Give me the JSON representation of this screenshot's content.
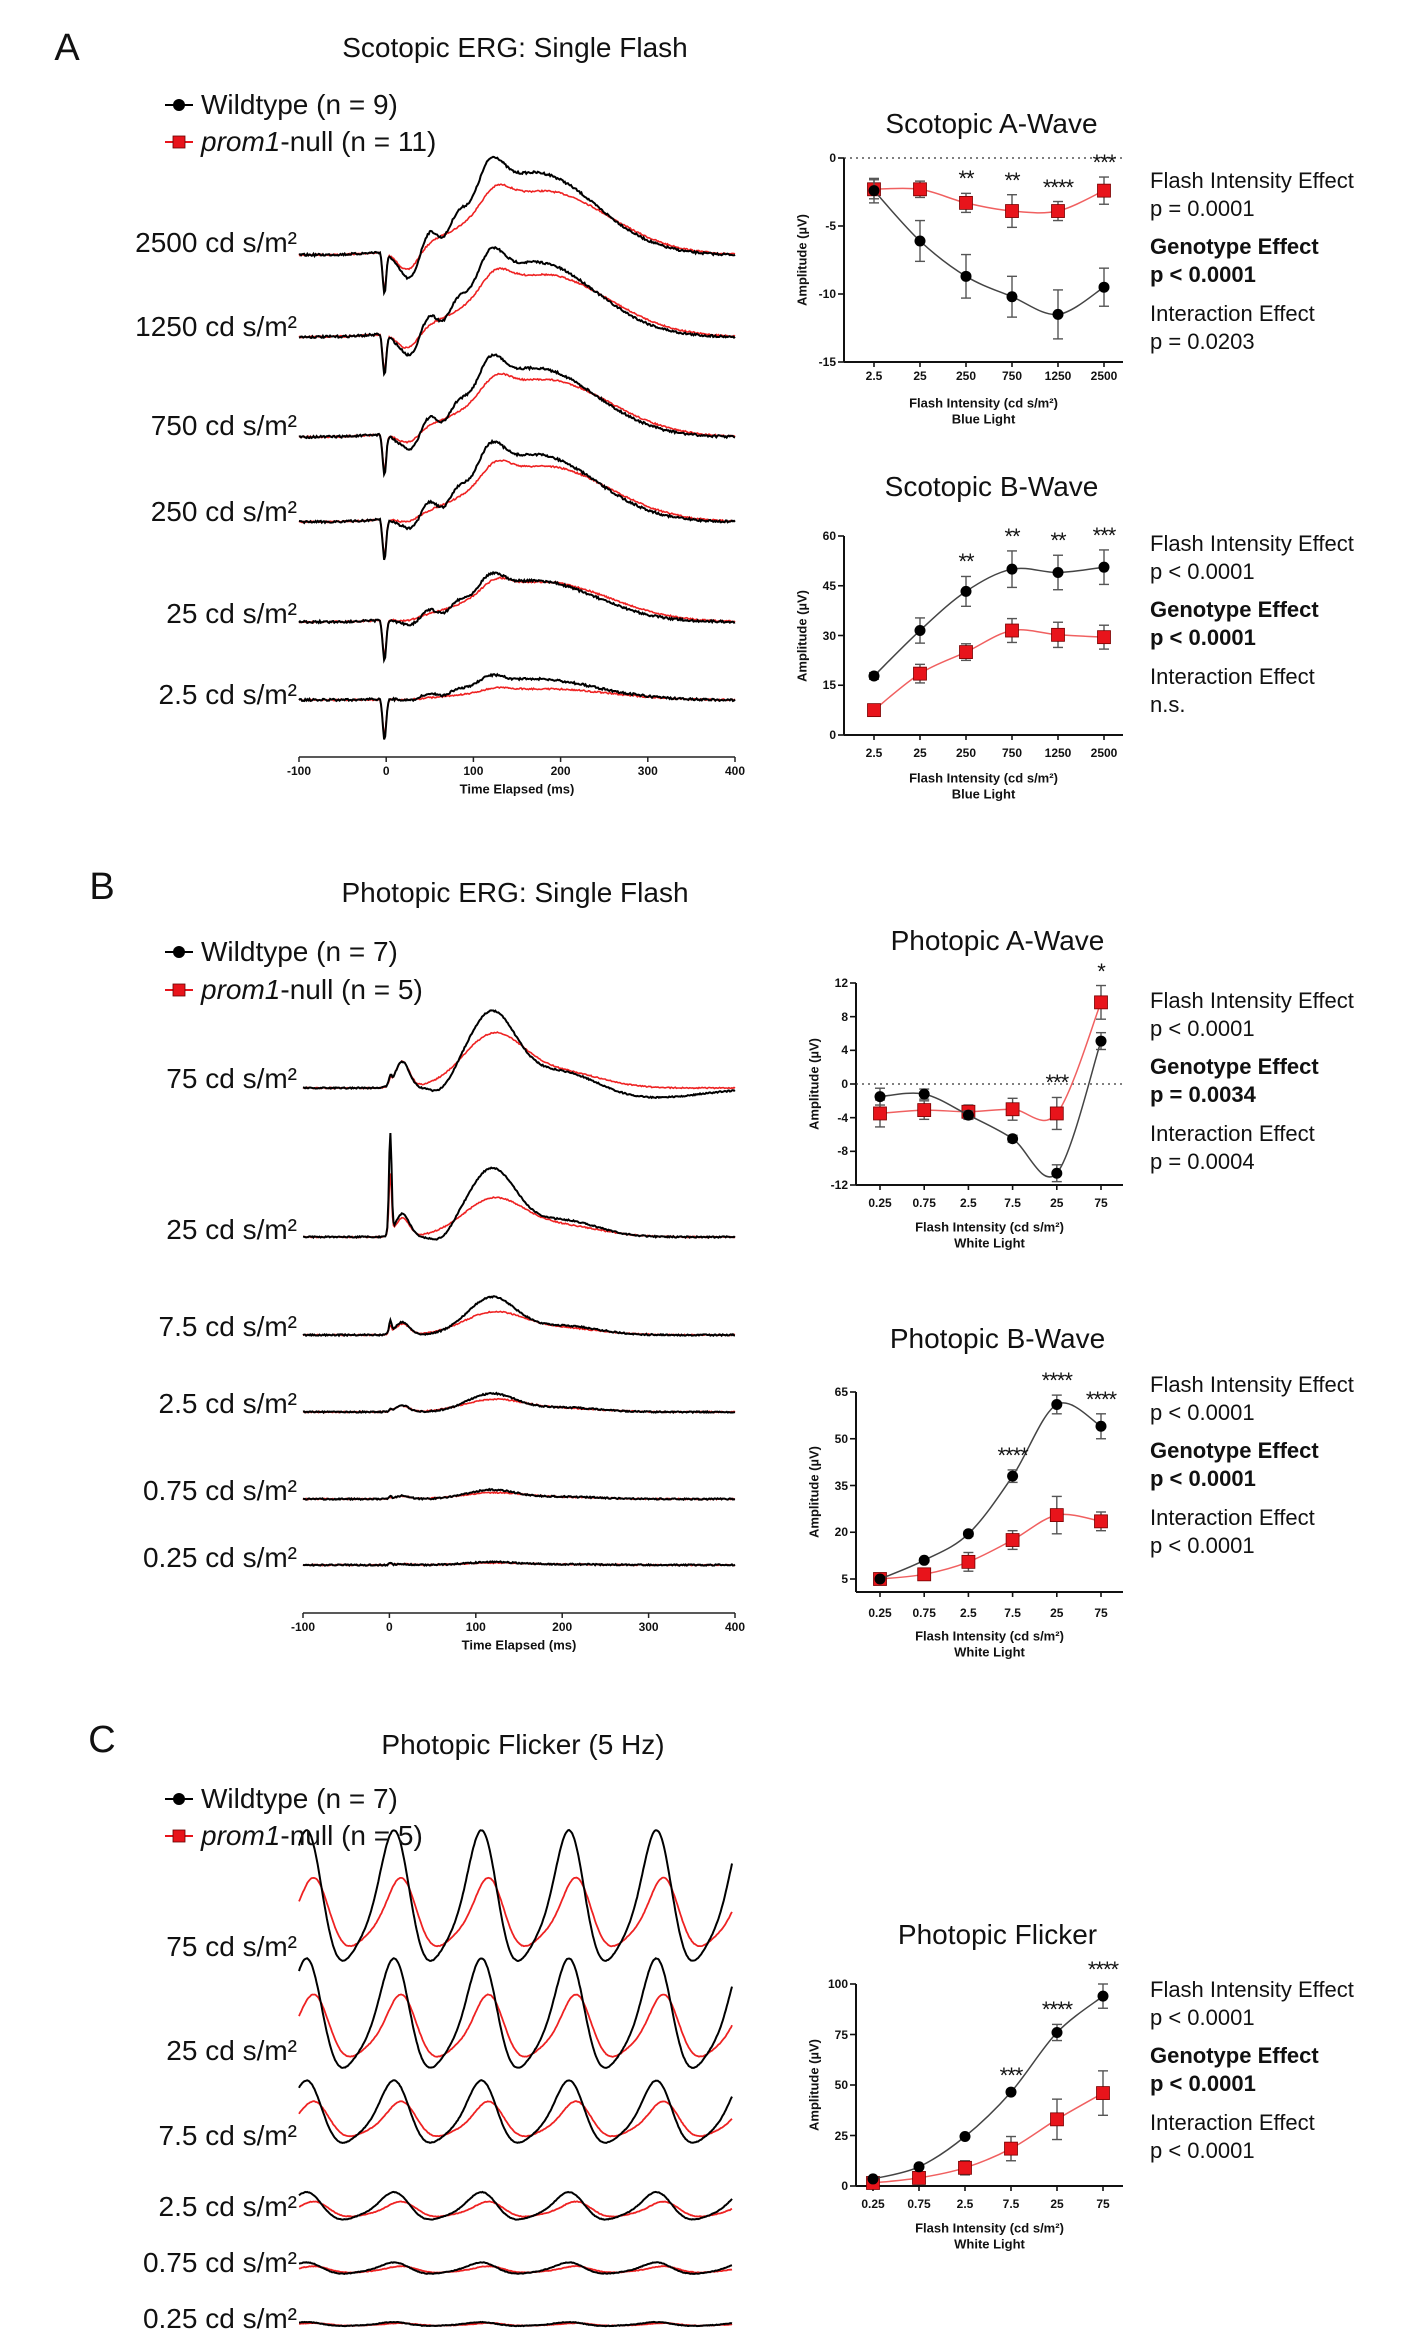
{
  "colors": {
    "wildtype": "#000000",
    "null": "#e8141b",
    "null_trace": "#ee2222"
  },
  "panels": [
    {
      "letter": "A",
      "title": "Scotopic ERG: Single Flash",
      "legend": {
        "wt": "Wildtype (n = 9)",
        "null_gene": "prom1",
        "null_rest": "-null (n = 11)"
      },
      "intensity_labels": [
        "2500 cd s/m²",
        "1250 cd s/m²",
        "750 cd s/m²",
        "250 cd s/m²",
        "25 cd s/m²",
        "2.5 cd s/m²"
      ],
      "time_axis": {
        "ticks": [
          "-100",
          "0",
          "100",
          "200",
          "300",
          "400"
        ],
        "label": "Time Elapsed (ms)"
      }
    },
    {
      "letter": "B",
      "title": "Photopic ERG: Single Flash",
      "legend": {
        "wt": "Wildtype (n = 7)",
        "null_gene": "prom1",
        "null_rest": "-null (n = 5)"
      },
      "intensity_labels": [
        "75 cd s/m²",
        "25 cd s/m²",
        "7.5 cd s/m²",
        "2.5 cd s/m²",
        "0.75 cd s/m²",
        "0.25 cd s/m²"
      ],
      "time_axis": {
        "ticks": [
          "-100",
          "0",
          "100",
          "200",
          "300",
          "400"
        ],
        "label": "Time Elapsed (ms)"
      }
    },
    {
      "letter": "C",
      "title": "Photopic Flicker (5 Hz)",
      "legend": {
        "wt": "Wildtype (n = 7)",
        "null_gene": "prom1",
        "null_rest": "-null (n = 5)"
      },
      "intensity_labels": [
        "75 cd s/m²",
        "25 cd s/m²",
        "7.5 cd s/m²",
        "2.5 cd s/m²",
        "0.75 cd s/m²",
        "0.25 cd s/m²"
      ]
    }
  ],
  "chart_data": [
    {
      "id": "scotopic-a",
      "type": "line",
      "title": "Scotopic A-Wave",
      "xlabel": "Flash Intensity (cd s/m²)",
      "xlabel2": "Blue Light",
      "ylabel": "Amplitude (µV)",
      "categories": [
        "2.5",
        "25",
        "250",
        "750",
        "1250",
        "2500"
      ],
      "ylim": [
        -15,
        0
      ],
      "yticks": [
        "0",
        "-5",
        "-10",
        "-15"
      ],
      "zero_line": true,
      "series": [
        {
          "name": "Wildtype",
          "values": [
            -2.4,
            -6.1,
            -8.7,
            -10.2,
            -11.5,
            -9.5
          ],
          "errors": [
            0.9,
            1.5,
            1.6,
            1.5,
            1.8,
            1.4
          ]
        },
        {
          "name": "prom1-null",
          "values": [
            -2.3,
            -2.3,
            -3.3,
            -3.9,
            -3.9,
            -2.4
          ],
          "errors": [
            0.7,
            0.6,
            0.7,
            1.2,
            0.7,
            1.0
          ]
        }
      ],
      "significance": [
        "",
        "",
        "**",
        "**",
        "****",
        "***"
      ],
      "stats": [
        {
          "text": "Flash Intensity Effect",
          "bold": false
        },
        {
          "text": "p = 0.0001",
          "bold": false
        },
        {
          "text": "Genotype Effect",
          "bold": true
        },
        {
          "text": "p < 0.0001",
          "bold": true
        },
        {
          "text": "Interaction Effect",
          "bold": false
        },
        {
          "text": "p = 0.0203",
          "bold": false
        }
      ]
    },
    {
      "id": "scotopic-b",
      "type": "line",
      "title": "Scotopic B-Wave",
      "xlabel": "Flash Intensity (cd s/m²)",
      "xlabel2": "Blue Light",
      "ylabel": "Amplitude (µV)",
      "categories": [
        "2.5",
        "25",
        "250",
        "750",
        "1250",
        "2500"
      ],
      "ylim": [
        0,
        60
      ],
      "yticks": [
        "0",
        "15",
        "30",
        "45",
        "60"
      ],
      "zero_line": false,
      "series": [
        {
          "name": "Wildtype",
          "values": [
            17.8,
            31.5,
            43.3,
            50.0,
            49.0,
            50.6
          ],
          "errors": [
            1.0,
            3.8,
            4.5,
            5.5,
            5.2,
            5.2
          ]
        },
        {
          "name": "prom1-null",
          "values": [
            7.5,
            18.5,
            25.0,
            31.5,
            30.2,
            29.5
          ],
          "errors": [
            0.8,
            2.8,
            2.5,
            3.6,
            3.8,
            3.6
          ]
        }
      ],
      "significance": [
        "",
        "",
        "**",
        "**",
        "**",
        "***"
      ],
      "stats": [
        {
          "text": "Flash Intensity Effect",
          "bold": false
        },
        {
          "text": "p < 0.0001",
          "bold": false
        },
        {
          "text": "Genotype Effect",
          "bold": true
        },
        {
          "text": "p < 0.0001",
          "bold": true
        },
        {
          "text": "Interaction Effect",
          "bold": false
        },
        {
          "text": "n.s.",
          "bold": false
        }
      ]
    },
    {
      "id": "photopic-a",
      "type": "line",
      "title": "Photopic A-Wave",
      "xlabel": "Flash Intensity (cd s/m²)",
      "xlabel2": "White Light",
      "ylabel": "Amplitude (µV)",
      "categories": [
        "0.25",
        "0.75",
        "2.5",
        "7.5",
        "25",
        "75"
      ],
      "ylim": [
        -12,
        12
      ],
      "yticks": [
        "-12",
        "-8",
        "-4",
        "0",
        "4",
        "8",
        "12"
      ],
      "zero_line": true,
      "series": [
        {
          "name": "Wildtype",
          "values": [
            -1.5,
            -1.2,
            -3.7,
            -6.5,
            -10.6,
            5.1
          ],
          "errors": [
            1.0,
            0.6,
            0.5,
            0.4,
            1.0,
            1.0
          ]
        },
        {
          "name": "prom1-null",
          "values": [
            -3.5,
            -3.1,
            -3.3,
            -3.0,
            -3.5,
            9.7
          ],
          "errors": [
            1.6,
            1.1,
            0.8,
            1.3,
            1.9,
            2.0
          ]
        }
      ],
      "significance": [
        "",
        "",
        "",
        "",
        "***",
        "*"
      ],
      "stats": [
        {
          "text": "Flash Intensity Effect",
          "bold": false
        },
        {
          "text": "p < 0.0001",
          "bold": false
        },
        {
          "text": "Genotype Effect",
          "bold": true
        },
        {
          "text": "p = 0.0034",
          "bold": true
        },
        {
          "text": "Interaction Effect",
          "bold": false
        },
        {
          "text": "p = 0.0004",
          "bold": false
        }
      ]
    },
    {
      "id": "photopic-b",
      "type": "line",
      "title": "Photopic B-Wave",
      "xlabel": "Flash Intensity (cd s/m²)",
      "xlabel2": "White Light",
      "ylabel": "Amplitude (µV)",
      "categories": [
        "0.25",
        "0.75",
        "2.5",
        "7.5",
        "25",
        "75"
      ],
      "ylim": [
        5,
        65
      ],
      "yticks": [
        "5",
        "20",
        "35",
        "50",
        "65"
      ],
      "zero_line": false,
      "series": [
        {
          "name": "Wildtype",
          "values": [
            5.0,
            11.0,
            19.5,
            38.0,
            61.0,
            54.0
          ],
          "errors": [
            0.5,
            0.6,
            0.8,
            2.0,
            3.0,
            4.0
          ]
        },
        {
          "name": "prom1-null",
          "values": [
            5.0,
            6.5,
            10.5,
            17.5,
            25.5,
            23.5
          ],
          "errors": [
            0.5,
            0.6,
            3.0,
            3.0,
            6.0,
            3.0
          ]
        }
      ],
      "significance": [
        "",
        "",
        "",
        "****",
        "****",
        "****"
      ],
      "stats": [
        {
          "text": "Flash Intensity Effect",
          "bold": false
        },
        {
          "text": "p < 0.0001",
          "bold": false
        },
        {
          "text": "Genotype Effect",
          "bold": true
        },
        {
          "text": "p < 0.0001",
          "bold": true
        },
        {
          "text": "Interaction Effect",
          "bold": false
        },
        {
          "text": "p < 0.0001",
          "bold": false
        }
      ]
    },
    {
      "id": "photopic-flicker",
      "type": "line",
      "title": "Photopic Flicker",
      "xlabel": "Flash Intensity (cd s/m²)",
      "xlabel2": "White Light",
      "ylabel": "Amplitude (µV)",
      "categories": [
        "0.25",
        "0.75",
        "2.5",
        "7.5",
        "25",
        "75"
      ],
      "ylim": [
        0,
        100
      ],
      "yticks": [
        "0",
        "25",
        "50",
        "75",
        "100"
      ],
      "zero_line": false,
      "series": [
        {
          "name": "Wildtype",
          "values": [
            3.5,
            9.5,
            24.5,
            46.5,
            76.0,
            94.0
          ],
          "errors": [
            1.0,
            1.0,
            1.0,
            1.0,
            4.0,
            6.0
          ]
        },
        {
          "name": "prom1-null",
          "values": [
            1.5,
            4.0,
            9.0,
            18.5,
            33.0,
            46.0
          ],
          "errors": [
            1.0,
            1.0,
            3.5,
            6.0,
            10.0,
            11.0
          ]
        }
      ],
      "significance": [
        "",
        "",
        "",
        "***",
        "****",
        "****"
      ],
      "stats": [
        {
          "text": "Flash Intensity Effect",
          "bold": false
        },
        {
          "text": "p < 0.0001",
          "bold": false
        },
        {
          "text": "Genotype Effect",
          "bold": true
        },
        {
          "text": "p < 0.0001",
          "bold": true
        },
        {
          "text": "Interaction Effect",
          "bold": false
        },
        {
          "text": "p < 0.0001",
          "bold": false
        }
      ]
    }
  ]
}
